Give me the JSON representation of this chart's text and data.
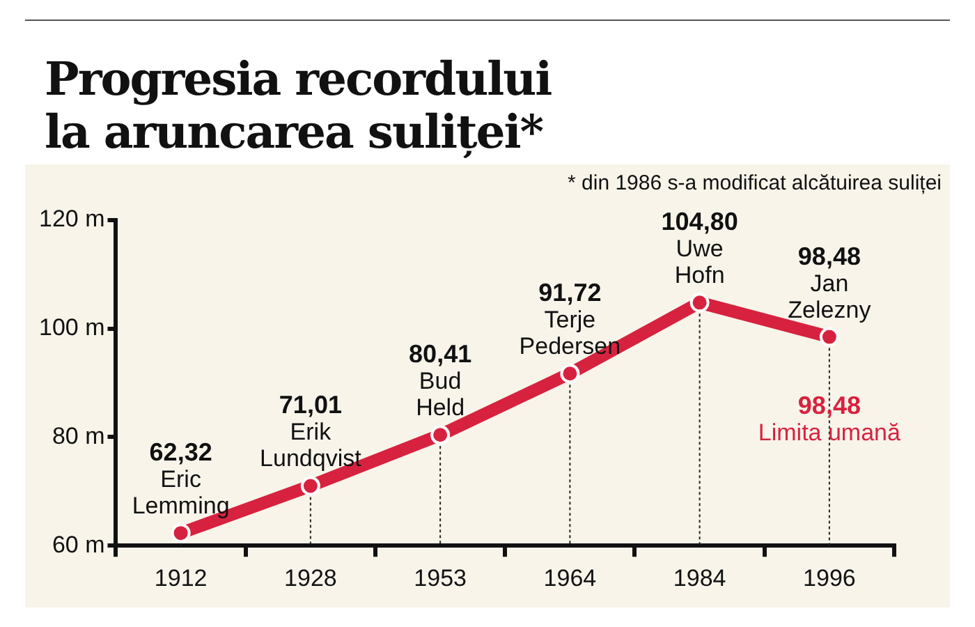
{
  "chart_data": {
    "type": "line",
    "title": "Progresia recordului\nla aruncarea suliței*",
    "categories": [
      "1912",
      "1928",
      "1953",
      "1964",
      "1984",
      "1996"
    ],
    "series": [
      {
        "color": "#d7223f",
        "values": [
          62.32,
          71.01,
          80.41,
          91.72,
          104.8,
          98.48
        ],
        "value_labels": [
          "62,32",
          "71,01",
          "80,41",
          "91,72",
          "104,80",
          "98,48"
        ]
      }
    ],
    "ylim": [
      60,
      120
    ],
    "yticks": [
      {
        "value": 60,
        "label": "60 m"
      },
      {
        "value": 80,
        "label": "80 m"
      },
      {
        "value": 100,
        "label": "100 m"
      },
      {
        "value": 120,
        "label": "120 m"
      }
    ],
    "grid": "x",
    "legend": false,
    "marker": "circle",
    "line_style": "solid",
    "annotations": [
      "* din 1986 s-a modificat alcătuirea suliței",
      {
        "text": "Eric\nLemming",
        "x": "1912",
        "y": 62.32
      },
      {
        "text": "Erik\nLundqvist",
        "x": "1928",
        "y": 71.01
      },
      {
        "text": "Bud\nHeld",
        "x": "1953",
        "y": 80.41
      },
      {
        "text": "Terje\nPedersen",
        "x": "1964",
        "y": 91.72
      },
      {
        "text": "Uwe\nHofn",
        "x": "1984",
        "y": 104.8
      },
      {
        "text": "Jan\nZelezny",
        "x": "1996",
        "y": 98.48
      },
      {
        "text": "98,48\nLimita umană",
        "x": "1996",
        "y": 98.48
      }
    ]
  }
}
